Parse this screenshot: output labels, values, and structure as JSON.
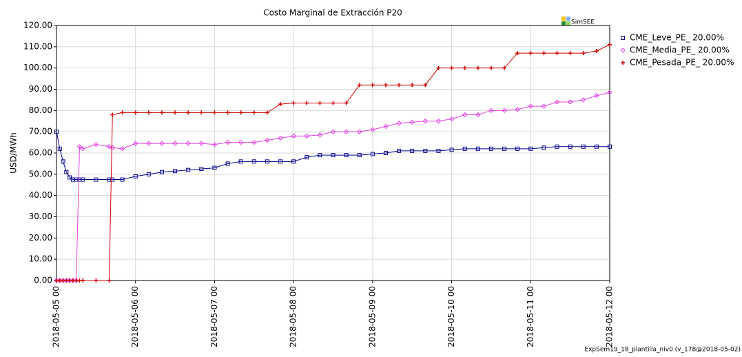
{
  "chart_data": {
    "type": "line",
    "title": "Costo Marginal de Extracción P20",
    "y_label": "USD/MWh",
    "logo": "SimSEE",
    "footnote": "ExpSem19_18_plantilla_niv0 (v_178@2018-05-02)",
    "x": [
      0,
      1,
      2,
      3,
      4,
      5,
      6,
      7,
      8,
      12,
      16,
      17,
      20,
      24,
      28,
      32,
      36,
      40,
      44,
      48,
      52,
      56,
      60,
      64,
      68,
      72,
      76,
      80,
      84,
      88,
      92,
      96,
      100,
      104,
      108,
      112,
      116,
      120,
      124,
      128,
      132,
      136,
      140,
      144,
      148,
      152,
      156,
      160,
      164,
      168
    ],
    "xlim": [
      0,
      168
    ],
    "xticks": [
      {
        "value": 0,
        "label": "2018-05-05 00"
      },
      {
        "value": 24,
        "label": "2018-05-06 00"
      },
      {
        "value": 48,
        "label": "2018-05-07 00"
      },
      {
        "value": 72,
        "label": "2018-05-08 00"
      },
      {
        "value": 96,
        "label": "2018-05-09 00"
      },
      {
        "value": 120,
        "label": "2018-05-10 00"
      },
      {
        "value": 144,
        "label": "2018-05-11 00"
      },
      {
        "value": 168,
        "label": "2018-05-12 00"
      }
    ],
    "ylim": [
      0,
      120
    ],
    "yticks": [
      {
        "value": 0,
        "label": "0.00"
      },
      {
        "value": 10,
        "label": "10.00"
      },
      {
        "value": 20,
        "label": "20.00"
      },
      {
        "value": 30,
        "label": "30.00"
      },
      {
        "value": 40,
        "label": "40.00"
      },
      {
        "value": 50,
        "label": "50.00"
      },
      {
        "value": 60,
        "label": "60.00"
      },
      {
        "value": 70,
        "label": "70.00"
      },
      {
        "value": 80,
        "label": "80.00"
      },
      {
        "value": 90,
        "label": "90.00"
      },
      {
        "value": 100,
        "label": "100.00"
      },
      {
        "value": 110,
        "label": "110.00"
      },
      {
        "value": 120,
        "label": "120.00"
      }
    ],
    "grid": true,
    "legend": "right",
    "series": [
      {
        "name": "CME_Leve_PE_ 20.00%",
        "color": "#00008b",
        "marker": "square",
        "values": [
          70,
          62,
          56,
          51,
          48.5,
          47.5,
          47.5,
          47.5,
          47.5,
          47.5,
          47.5,
          47.5,
          47.5,
          49,
          50,
          51,
          51.5,
          52,
          52.5,
          53,
          55,
          56,
          56,
          56,
          56,
          56,
          58,
          59,
          59,
          59,
          59,
          59.5,
          60,
          61,
          61,
          61,
          61,
          61.5,
          62,
          62,
          62,
          62,
          62,
          62,
          62.5,
          63,
          63,
          63,
          63,
          63
        ]
      },
      {
        "name": "CME_Media_PE_ 20.00%",
        "color": "#e040e0",
        "marker": "diamond",
        "values": [
          0,
          0,
          0,
          0,
          0,
          0,
          0,
          63,
          62,
          64,
          63,
          62.5,
          62,
          64.5,
          64.5,
          64.5,
          64.5,
          64.5,
          64.5,
          64,
          65,
          65,
          65,
          66,
          67,
          68,
          68,
          68.5,
          70,
          70,
          70,
          71,
          72.5,
          74,
          74.5,
          75,
          75,
          76,
          78,
          78,
          80,
          80,
          80.5,
          82,
          82,
          84,
          84,
          85,
          87,
          88.5
        ]
      },
      {
        "name": "CME_Pesada_PE_ 20.00%",
        "color": "#cc0000",
        "marker": "plus",
        "values": [
          0,
          0,
          0,
          0,
          0,
          0,
          0,
          0,
          0,
          0,
          0,
          78,
          79,
          79,
          79,
          79,
          79,
          79,
          79,
          79,
          79,
          79,
          79,
          79,
          83,
          83.5,
          83.5,
          83.5,
          83.5,
          83.5,
          92,
          92,
          92,
          92,
          92,
          92,
          100,
          100,
          100,
          100,
          100,
          100,
          107,
          107,
          107,
          107,
          107,
          107,
          108,
          111
        ]
      }
    ]
  }
}
